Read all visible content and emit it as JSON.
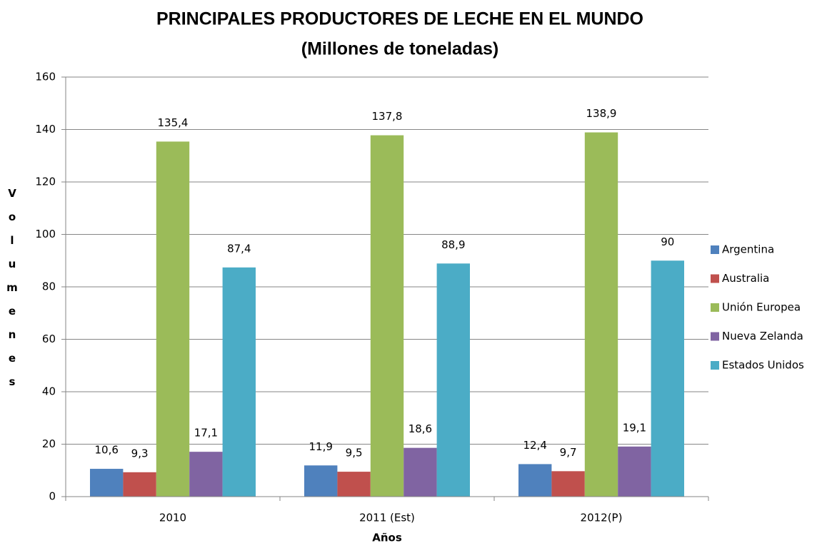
{
  "chart_data": {
    "type": "bar",
    "title": "PRINCIPALES PRODUCTORES DE LECHE EN EL MUNDO",
    "subtitle": "(Millones de toneladas)",
    "x_label": "Años",
    "y_label": "Volumenes",
    "categories": [
      "2010",
      "2011 (Est)",
      "2012(P)"
    ],
    "series": [
      {
        "name": "Argentina",
        "color": "#4f81bd",
        "values": [
          10.6,
          11.9,
          12.4
        ],
        "value_labels": [
          "10,6",
          "11,9",
          "12,4"
        ]
      },
      {
        "name": "Australia",
        "color": "#c0504d",
        "values": [
          9.3,
          9.5,
          9.7
        ],
        "value_labels": [
          "9,3",
          "9,5",
          "9,7"
        ]
      },
      {
        "name": "Unión Europea",
        "color": "#9bbb59",
        "values": [
          135.4,
          137.8,
          138.9
        ],
        "value_labels": [
          "135,4",
          "137,8",
          "138,9"
        ]
      },
      {
        "name": "Nueva Zelanda",
        "color": "#8064a2",
        "values": [
          17.1,
          18.6,
          19.1
        ],
        "value_labels": [
          "17,1",
          "18,6",
          "19,1"
        ]
      },
      {
        "name": "Estados Unidos",
        "color": "#4bacc6",
        "values": [
          87.4,
          88.9,
          90
        ],
        "value_labels": [
          "87,4",
          "88,9",
          "90"
        ]
      }
    ],
    "ylim": [
      0,
      160
    ],
    "yticks": [
      0,
      20,
      40,
      60,
      80,
      100,
      120,
      140,
      160
    ],
    "grid": true,
    "legend": "right"
  }
}
